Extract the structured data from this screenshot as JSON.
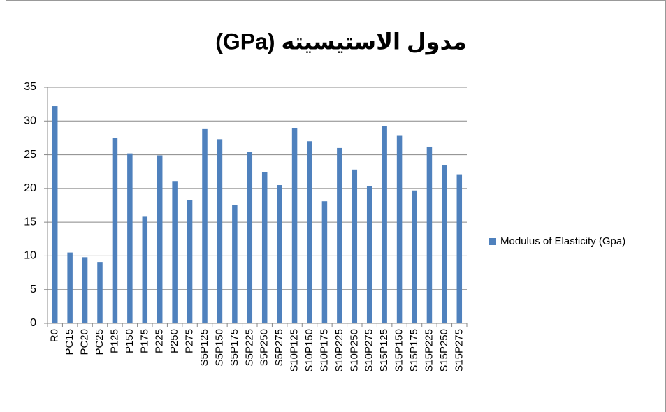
{
  "chart_data": {
    "type": "bar",
    "title": "مدول الاستيسيته (GPa)",
    "categories": [
      "R0",
      "PC15",
      "PC20",
      "PC25",
      "P125",
      "P150",
      "P175",
      "P225",
      "P250",
      "P275",
      "S5P125",
      "S5P150",
      "S5P175",
      "S5P225",
      "S5P250",
      "S5P275",
      "S10P125",
      "S10P150",
      "S10P175",
      "S10P225",
      "S10P250",
      "S10P275",
      "S15P125",
      "S15P150",
      "S15P175",
      "S15P225",
      "S15P250",
      "S15P275"
    ],
    "series": [
      {
        "name": "Modulus of Elasticity (Gpa)",
        "color": "#4f81bd",
        "values": [
          32.2,
          10.5,
          9.8,
          9.1,
          27.5,
          25.2,
          15.8,
          24.9,
          21.1,
          18.3,
          28.8,
          27.3,
          17.5,
          25.4,
          22.4,
          20.5,
          28.9,
          27.0,
          18.1,
          26.0,
          22.8,
          20.3,
          29.3,
          27.8,
          19.7,
          26.2,
          23.4,
          22.1
        ]
      }
    ],
    "ylim": [
      0,
      35
    ],
    "yticks": [
      0,
      5,
      10,
      15,
      20,
      25,
      30,
      35
    ],
    "grid": true,
    "legend": "right"
  }
}
